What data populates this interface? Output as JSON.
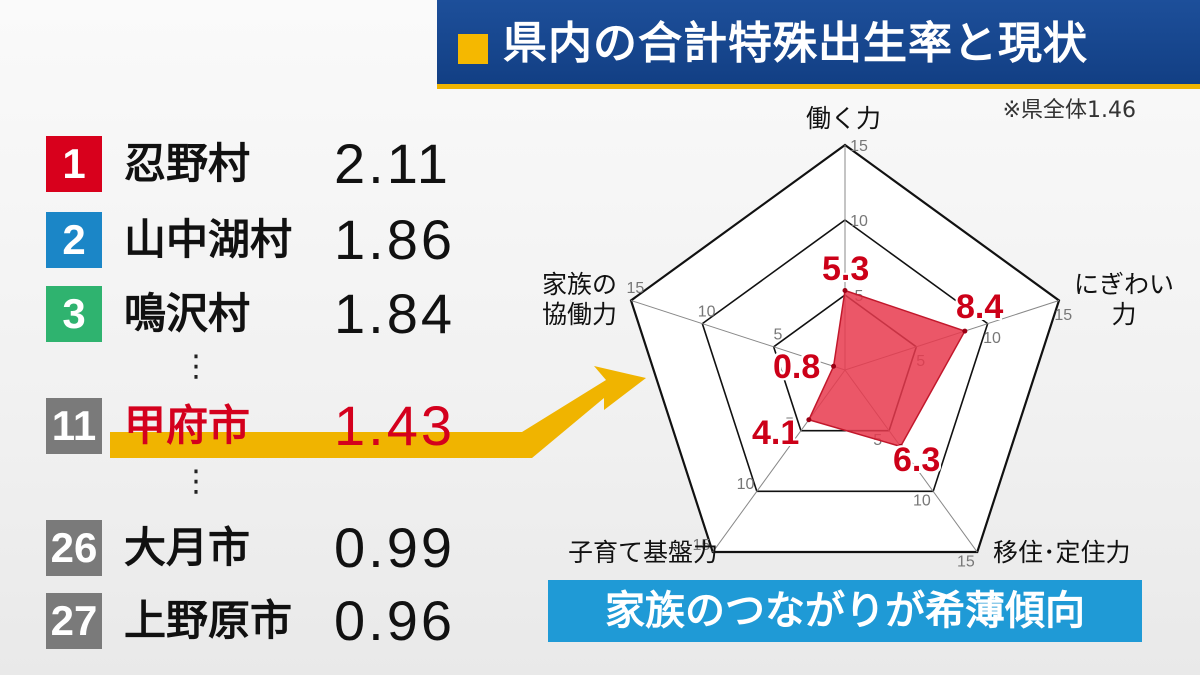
{
  "header": {
    "title": "県内の合計特殊出生率と現状",
    "note": "※県全体1.46"
  },
  "ranking": [
    {
      "rank": "1",
      "name": "忍野村",
      "value": "2.11",
      "badge_color": "#d8001c"
    },
    {
      "rank": "2",
      "name": "山中湖村",
      "value": "1.86",
      "badge_color": "#1b86c7"
    },
    {
      "rank": "3",
      "name": "鳴沢村",
      "value": "1.84",
      "badge_color": "#2fb36f"
    },
    {
      "rank": "11",
      "name": "甲府市",
      "value": "1.43",
      "badge_color": "#7a7a7a"
    },
    {
      "rank": "26",
      "name": "大月市",
      "value": "0.99",
      "badge_color": "#7a7a7a"
    },
    {
      "rank": "27",
      "name": "上野原市",
      "value": "0.96",
      "badge_color": "#7a7a7a"
    }
  ],
  "ellipsis": [
    "⋮",
    "⋮"
  ],
  "colors": {
    "highlight_red": "#d4001d",
    "arrow_yellow": "#f0b400",
    "radar_fill": "#e83a4e",
    "banner_blue": "#1f9ad6",
    "header_blue": "#174a94"
  },
  "chart_data": {
    "type": "radar",
    "axes": [
      "働く力",
      "にぎわい力",
      "移住･定住力",
      "子育て基盤力",
      "家族の協働力"
    ],
    "axis_labels_display": [
      "働く力",
      "にぎわい\n力",
      "移住･定住力",
      "子育て基盤力",
      "家族の\n協働力"
    ],
    "values": [
      5.3,
      8.4,
      6.3,
      4.1,
      0.8
    ],
    "value_labels": [
      "5.3",
      "8.4",
      "6.3",
      "4.1",
      "0.8"
    ],
    "rings": [
      5,
      10,
      15
    ],
    "max": 15,
    "ring_tick_labels": [
      "5",
      "10",
      "15"
    ]
  },
  "banner": {
    "text": "家族のつながりが希薄傾向"
  }
}
